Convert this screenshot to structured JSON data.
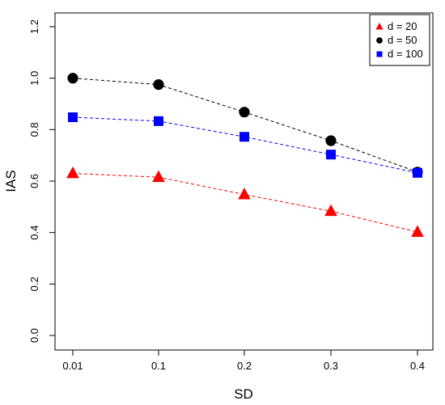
{
  "chart_data": {
    "type": "line",
    "title": "",
    "xlabel": "SD",
    "ylabel": "IAS",
    "categories": [
      "0.01",
      "0.1",
      "0.2",
      "0.3",
      "0.4"
    ],
    "ylim": [
      0.0,
      1.2
    ],
    "yticks": [
      "0.0",
      "0.2",
      "0.4",
      "0.6",
      "0.8",
      "1.0",
      "1.2"
    ],
    "grid": false,
    "legend_position": "top-right",
    "series": [
      {
        "name": "d = 20",
        "values": [
          0.63,
          0.615,
          0.548,
          0.483,
          0.402
        ],
        "color": "#ff0000",
        "marker": "triangle"
      },
      {
        "name": "d = 50",
        "values": [
          1.0,
          0.975,
          0.868,
          0.757,
          0.635
        ],
        "color": "#000000",
        "marker": "circle"
      },
      {
        "name": "d = 100",
        "values": [
          0.848,
          0.833,
          0.772,
          0.703,
          0.632
        ],
        "color": "#0000ff",
        "marker": "square"
      }
    ]
  }
}
